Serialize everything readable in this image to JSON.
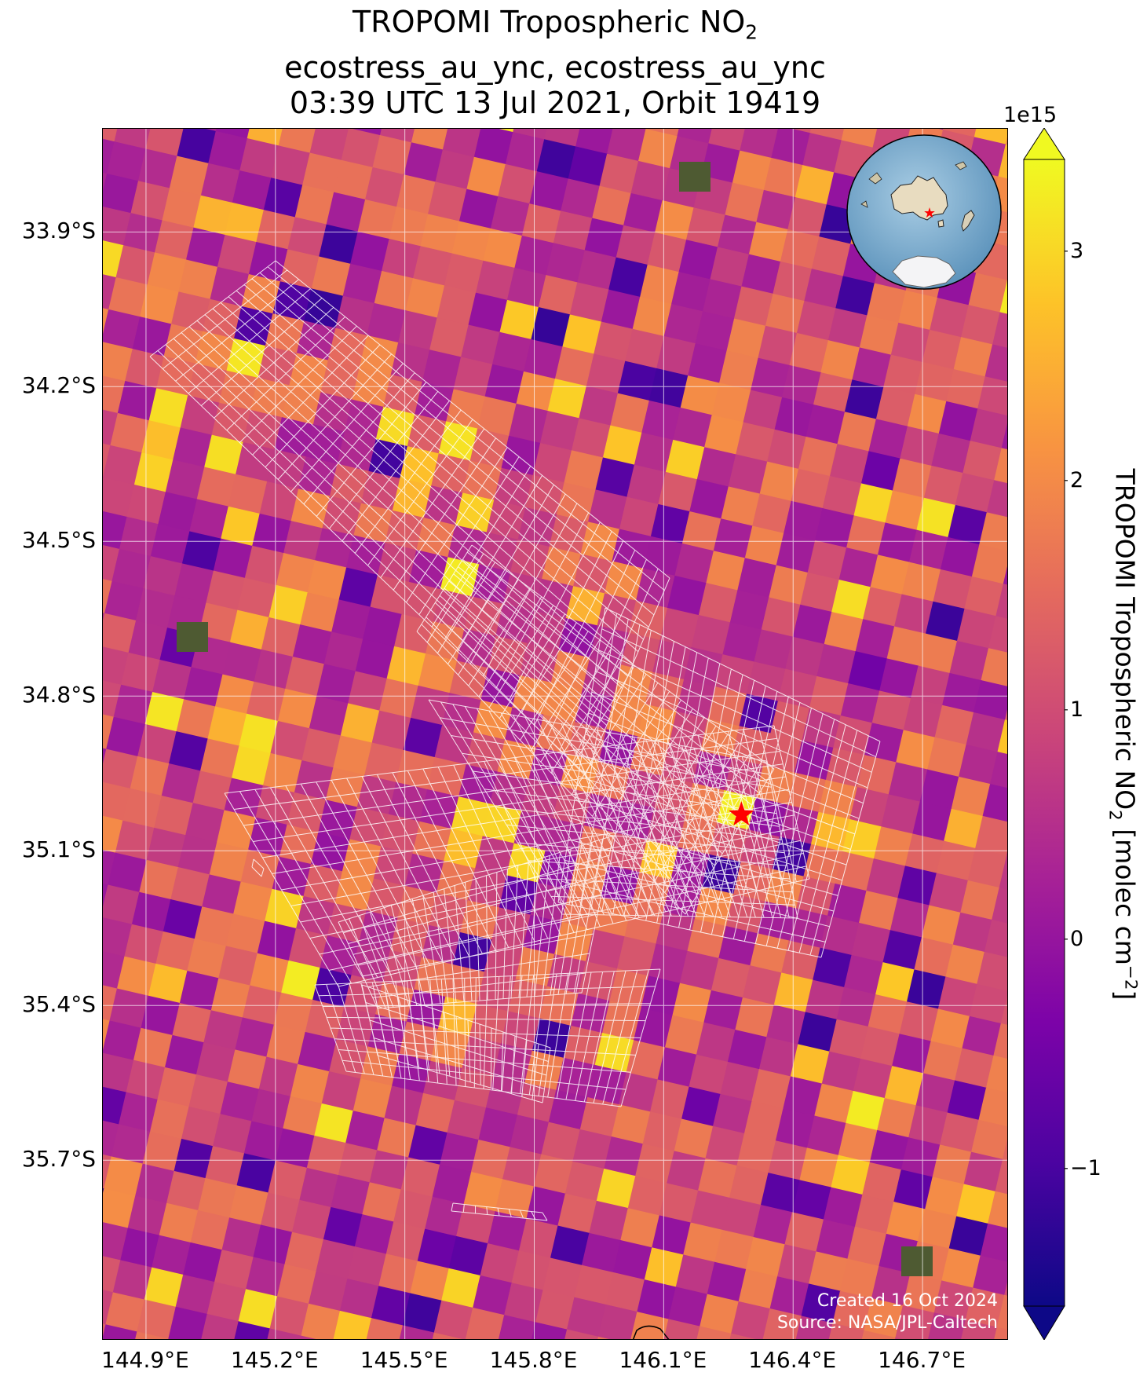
{
  "title": {
    "line1_prefix": "TROPOMI Tropospheric NO",
    "line1_sub": "2",
    "line2": "ecostress_au_ync, ecostress_au_ync",
    "line3": "03:39 UTC 13 Jul 2021, Orbit 19419"
  },
  "map": {
    "lon_range": [
      144.8,
      146.9
    ],
    "lat_range": [
      -36.05,
      -33.7
    ],
    "lat_ticks": [
      {
        "value": -33.9,
        "label": "33.9°S"
      },
      {
        "value": -34.2,
        "label": "34.2°S"
      },
      {
        "value": -34.5,
        "label": "34.5°S"
      },
      {
        "value": -34.8,
        "label": "34.8°S"
      },
      {
        "value": -35.1,
        "label": "35.1°S"
      },
      {
        "value": -35.4,
        "label": "35.4°S"
      },
      {
        "value": -35.7,
        "label": "35.7°S"
      }
    ],
    "lon_ticks": [
      {
        "value": 144.9,
        "label": "144.9°E"
      },
      {
        "value": 145.2,
        "label": "145.2°E"
      },
      {
        "value": 145.5,
        "label": "145.5°E"
      },
      {
        "value": 145.8,
        "label": "145.8°E"
      },
      {
        "value": 146.1,
        "label": "146.1°E"
      },
      {
        "value": 146.4,
        "label": "146.4°E"
      },
      {
        "value": 146.7,
        "label": "146.7°E"
      }
    ],
    "gridlines": true,
    "target_marker": {
      "lon": 146.28,
      "lat": -35.03,
      "color": "#ff0000",
      "icon": "star-icon"
    },
    "footprint_overlay": {
      "color": "#ffffff",
      "icon": "ecostress-footprint-grid"
    },
    "inset_globe": {
      "icon": "globe-inset-icon",
      "marker_color": "#ff0000",
      "placement": "top-right"
    }
  },
  "credits": {
    "created": "Created 16 Oct 2024",
    "source": "Source: NASA/JPL-Caltech"
  },
  "colorbar": {
    "label_prefix": "TROPOMI Tropospheric NO",
    "label_sub": "2",
    "label_mid": " [molec cm",
    "label_sup": "−2",
    "label_suffix": "]",
    "offset_text": "1e15",
    "range": [
      -1.6,
      3.4
    ],
    "extend": "both",
    "colormap": "plasma",
    "ticks": [
      {
        "value": -1,
        "label": "−1"
      },
      {
        "value": 0,
        "label": "0"
      },
      {
        "value": 1,
        "label": "1"
      },
      {
        "value": 2,
        "label": "2"
      },
      {
        "value": 3,
        "label": "3"
      }
    ]
  },
  "chart_data": {
    "type": "heatmap",
    "title": "TROPOMI Tropospheric NO2 — ecostress_au_ync, ecostress_au_ync — 03:39 UTC 13 Jul 2021, Orbit 19419",
    "xlabel": "",
    "ylabel": "",
    "zlabel": "TROPOMI Tropospheric NO2 [molec cm−2]",
    "xlim": [
      144.8,
      146.9
    ],
    "ylim": [
      -36.05,
      -33.7
    ],
    "zlim": [
      -1600000000000000.0,
      3400000000000000.0
    ]
  }
}
